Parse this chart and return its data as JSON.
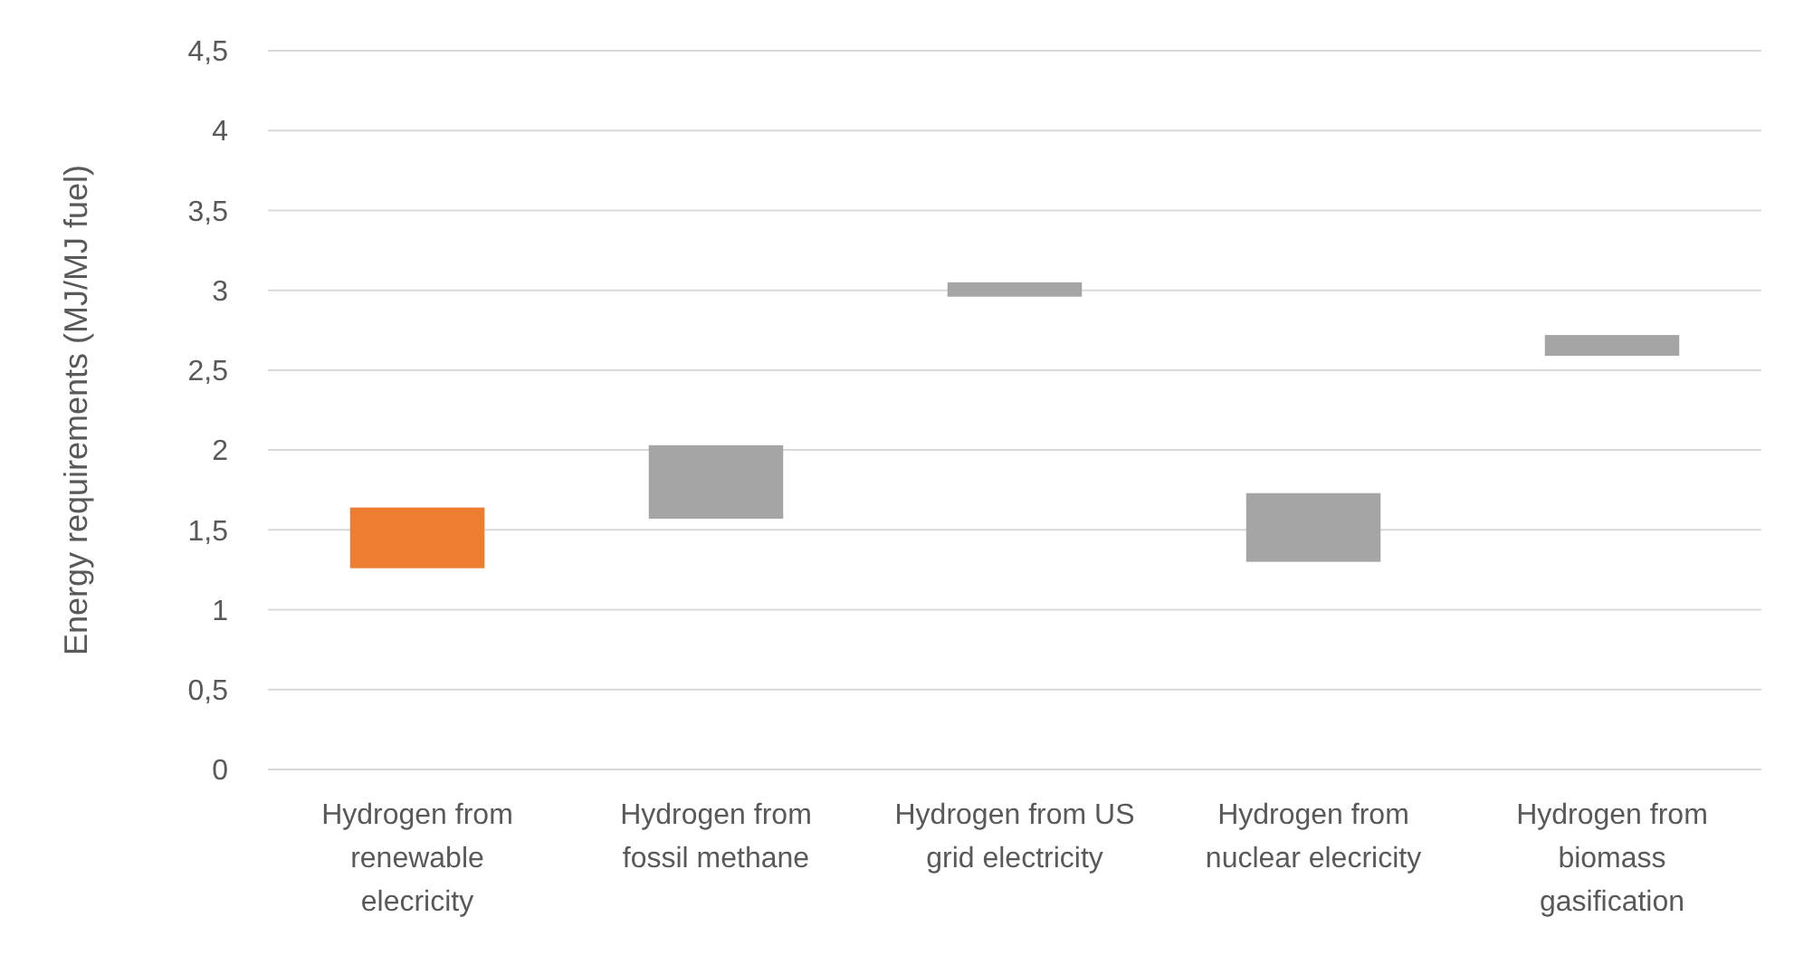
{
  "chart_data": {
    "type": "bar",
    "ylabel": "Energy requirements (MJ/MJ fuel)",
    "categories": [
      "Hydrogen from renewable elecricity",
      "Hydrogen from fossil methane",
      "Hydrogen from US grid electricity",
      "Hydrogen from nuclear elecricity",
      "Hydrogen from biomass gasification"
    ],
    "values": [
      0.38,
      0.46,
      0.09,
      0.43,
      0.13
    ],
    "base": [
      1.26,
      1.57,
      2.96,
      1.3,
      2.59
    ],
    "colors": [
      "#ed7d31",
      "#a5a5a5",
      "#a5a5a5",
      "#a5a5a5",
      "#a5a5a5"
    ],
    "ylim": [
      0,
      4.5
    ],
    "yticks": [
      0,
      {
        "value": 0.5,
        "label": "0,5"
      },
      1,
      {
        "value": 1.5,
        "label": "1,5"
      },
      2,
      {
        "value": 2.5,
        "label": "2,5"
      },
      3,
      {
        "value": 3.5,
        "label": "3,5"
      },
      4,
      {
        "value": 4.5,
        "label": "4,5"
      }
    ],
    "grid": "y"
  }
}
